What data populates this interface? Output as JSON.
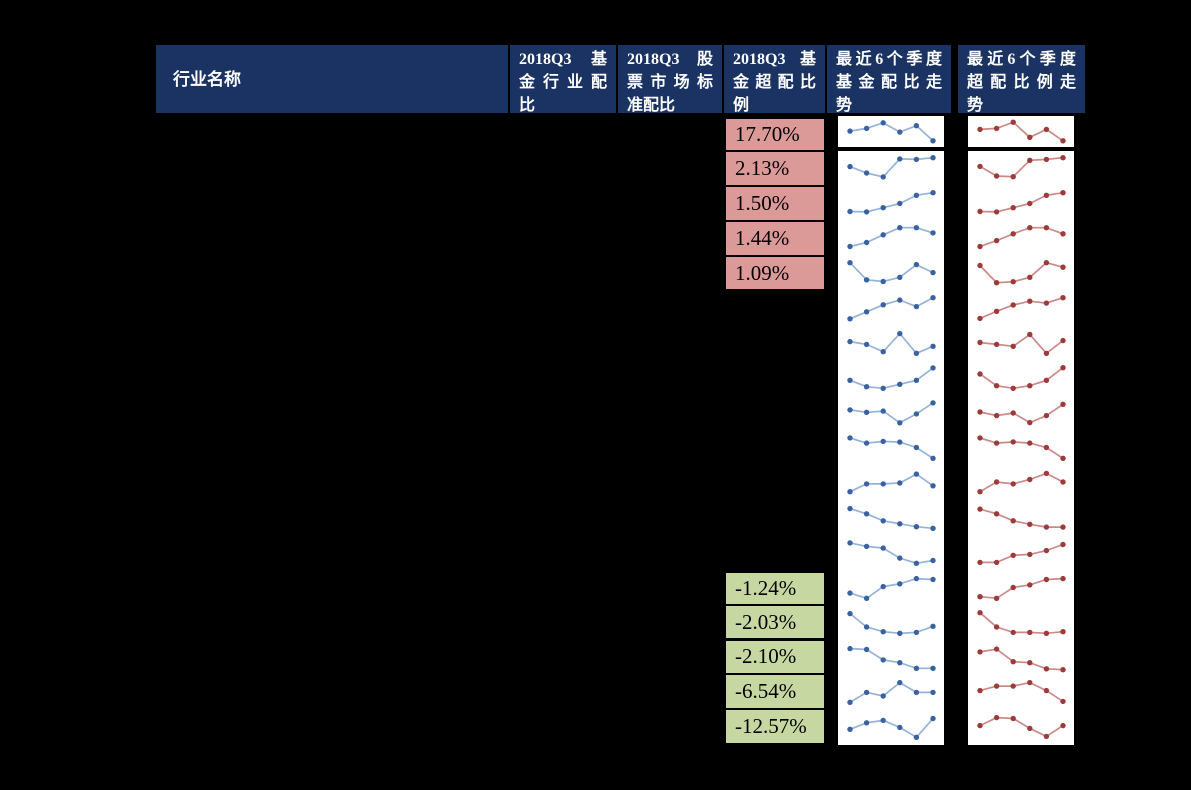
{
  "page": {
    "background": "#000000"
  },
  "colors": {
    "header_bg": "#1a3363",
    "header_text": "#ffffff",
    "overweight_bg": "#db9a97",
    "underweight_bg": "#c7d7a2",
    "cell_text": "#000000",
    "sparkline_area_bg": "#ffffff",
    "fund_trend_line": "#95b3d7",
    "fund_trend_marker": "#3a62a0",
    "overweight_trend_line": "#cb8a88",
    "overweight_trend_marker": "#9e3a38",
    "grid_border": "#000000"
  },
  "table": {
    "header": {
      "cells": [
        {
          "label": "行业名称",
          "lines": [
            [
              "行业名称"
            ]
          ]
        },
        {
          "label": "2018Q3 基金行业配比",
          "lines": [
            [
              "2018Q3",
              "基"
            ],
            [
              "金",
              "行",
              "业",
              "配"
            ],
            [
              "比"
            ]
          ]
        },
        {
          "label": "2018Q3 股票市场标准配比",
          "lines": [
            [
              "2018Q3",
              "股"
            ],
            [
              "票",
              "市",
              "场",
              "标"
            ],
            [
              "准配比"
            ]
          ]
        },
        {
          "label": "2018Q3基金超配比例",
          "lines": [
            [
              "2018Q3",
              "基"
            ],
            [
              "金",
              "超",
              "配",
              "比"
            ],
            [
              "例"
            ]
          ]
        },
        {
          "label": "最近 6 个季度基金配比走势",
          "lines": [
            [
              "最",
              "近",
              "6",
              "个",
              "季",
              "度"
            ],
            [
              "基",
              "金",
              "配",
              "比",
              "走"
            ],
            [
              "势"
            ]
          ]
        },
        {
          "label": "最近 6 个季度超配比例走势",
          "lines": [
            [
              "最",
              "近",
              "6",
              "个",
              "季",
              "度"
            ],
            [
              "超",
              "配",
              "比",
              "例",
              "走"
            ],
            [
              "势"
            ]
          ]
        }
      ]
    },
    "overweight_cells": [
      "17.70%",
      "2.13%",
      "1.50%",
      "1.44%",
      "1.09%"
    ],
    "underweight_cells": [
      "-1.24%",
      "-2.03%",
      "-2.10%",
      "-6.54%",
      "-12.57%"
    ]
  },
  "chart_data": {
    "type": "table",
    "columns": [
      "行业名称",
      "2018Q3 基金行业配比",
      "2018Q3 股票市场标准配比",
      "2018Q3基金超配比例",
      "最近 6 个季度基金配比走势",
      "最近 6 个季度超配比例走势"
    ],
    "row_count": 18,
    "fund_overweight_ratio_positive": [
      "17.70%",
      "2.13%",
      "1.50%",
      "1.44%",
      "1.09%"
    ],
    "fund_overweight_ratio_negative": [
      "-1.24%",
      "-2.03%",
      "-2.10%",
      "-6.54%",
      "-12.57%"
    ],
    "sparklines": {
      "type": "line",
      "points_per_series": 6,
      "scale": "normalized 0-1 per row, no axes shown",
      "fund_allocation_trend": [
        [
          0.52,
          0.65,
          0.92,
          0.47,
          0.78,
          0.05
        ],
        [
          0.62,
          0.35,
          0.18,
          0.95,
          0.93,
          1.0
        ],
        [
          0.2,
          0.18,
          0.36,
          0.54,
          0.89,
          1.0
        ],
        [
          0.2,
          0.37,
          0.7,
          1.0,
          1.0,
          0.78
        ],
        [
          1.0,
          0.27,
          0.2,
          0.38,
          0.92,
          0.58
        ],
        [
          0.1,
          0.4,
          0.7,
          0.9,
          0.62,
          1.0
        ],
        [
          0.58,
          0.46,
          0.15,
          0.92,
          0.08,
          0.38
        ],
        [
          0.42,
          0.15,
          0.08,
          0.25,
          0.42,
          0.95
        ],
        [
          0.65,
          0.55,
          0.6,
          0.1,
          0.48,
          0.95
        ],
        [
          0.95,
          0.73,
          0.8,
          0.77,
          0.54,
          0.08
        ],
        [
          0.15,
          0.48,
          0.48,
          0.52,
          0.9,
          0.4
        ],
        [
          0.92,
          0.7,
          0.4,
          0.27,
          0.15,
          0.08
        ],
        [
          0.95,
          0.8,
          0.73,
          0.3,
          0.08,
          0.2
        ],
        [
          0.3,
          0.08,
          0.58,
          0.7,
          0.92,
          0.88
        ],
        [
          0.92,
          0.35,
          0.15,
          0.08,
          0.12,
          0.38
        ],
        [
          0.92,
          0.88,
          0.44,
          0.32,
          0.08,
          0.08
        ],
        [
          0.08,
          0.5,
          0.35,
          0.92,
          0.5,
          0.5
        ],
        [
          0.42,
          0.7,
          0.8,
          0.5,
          0.08,
          0.88
        ]
      ],
      "overweight_ratio_trend": [
        [
          0.6,
          0.65,
          0.95,
          0.22,
          0.6,
          0.05
        ],
        [
          0.63,
          0.22,
          0.19,
          0.89,
          0.93,
          1.0
        ],
        [
          0.2,
          0.18,
          0.36,
          0.54,
          0.89,
          1.0
        ],
        [
          0.2,
          0.45,
          0.74,
          1.0,
          1.0,
          0.74
        ],
        [
          0.88,
          0.15,
          0.19,
          0.38,
          1.0,
          0.81
        ],
        [
          0.12,
          0.42,
          0.69,
          0.85,
          0.77,
          1.0
        ],
        [
          0.54,
          0.46,
          0.38,
          0.88,
          0.08,
          0.62
        ],
        [
          0.69,
          0.19,
          0.08,
          0.19,
          0.42,
          0.96
        ],
        [
          0.56,
          0.41,
          0.52,
          0.11,
          0.41,
          0.89
        ],
        [
          0.95,
          0.73,
          0.78,
          0.73,
          0.54,
          0.08
        ],
        [
          0.15,
          0.56,
          0.48,
          0.67,
          0.93,
          0.56
        ],
        [
          0.9,
          0.7,
          0.4,
          0.25,
          0.13,
          0.13
        ],
        [
          0.12,
          0.12,
          0.42,
          0.46,
          0.62,
          0.88
        ],
        [
          0.15,
          0.08,
          0.54,
          0.65,
          0.88,
          0.92
        ],
        [
          0.96,
          0.35,
          0.12,
          0.12,
          0.08,
          0.15
        ],
        [
          0.78,
          0.9,
          0.36,
          0.32,
          0.06,
          0.02
        ],
        [
          0.58,
          0.77,
          0.77,
          0.92,
          0.58,
          0.12
        ],
        [
          0.58,
          0.92,
          0.88,
          0.46,
          0.12,
          0.58
        ]
      ]
    }
  }
}
